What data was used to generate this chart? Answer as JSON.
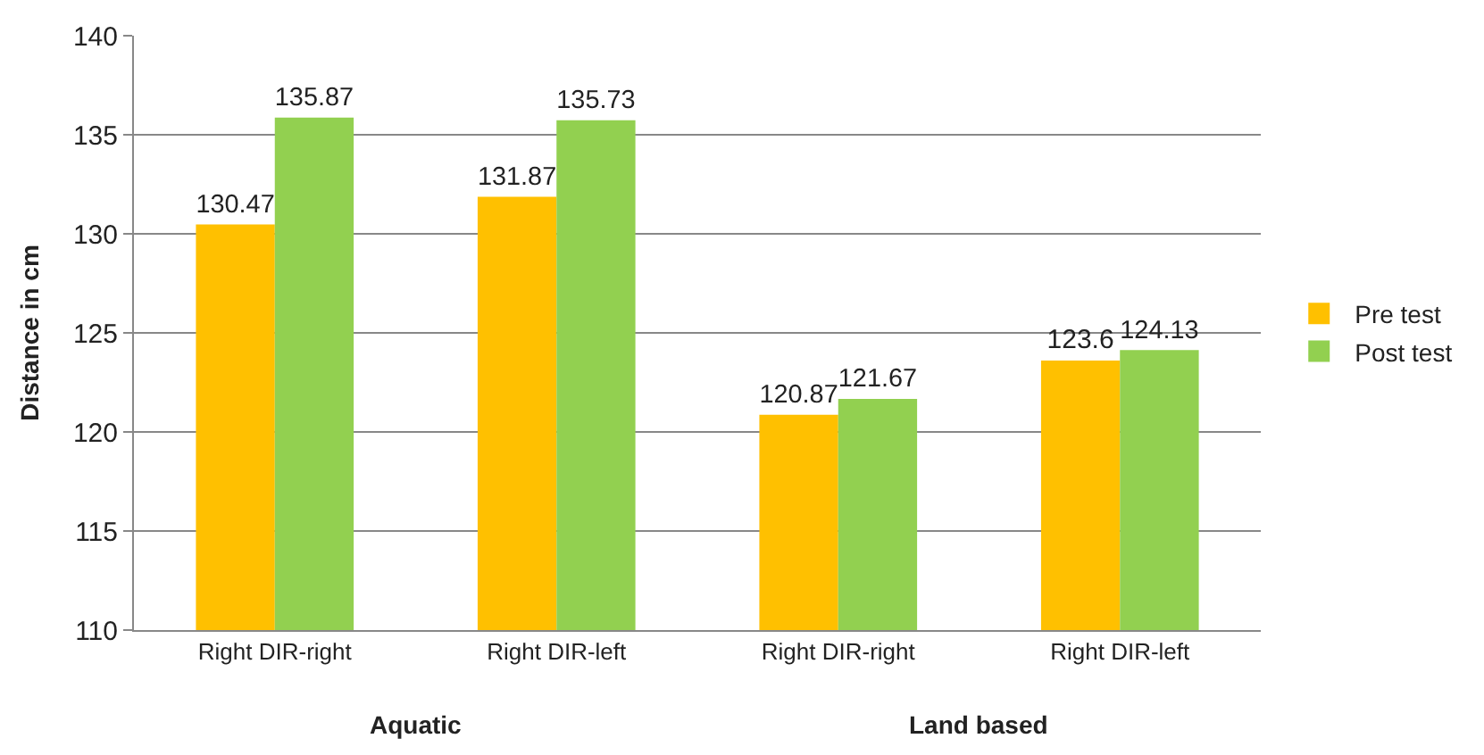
{
  "chart_data": {
    "type": "bar",
    "ylabel": "Distance in cm",
    "categories": [
      "Right DIR-right",
      "Right DIR-left",
      "Right DIR-right",
      "Right DIR-left"
    ],
    "series": [
      {
        "name": "Pre test",
        "color": "#ffc000",
        "values": [
          130.47,
          131.87,
          120.87,
          123.6
        ]
      },
      {
        "name": "Post test",
        "color": "#92d050",
        "values": [
          135.87,
          135.73,
          121.67,
          124.13
        ]
      }
    ],
    "ylim": [
      110,
      140
    ],
    "yticks": [
      110,
      115,
      120,
      125,
      130,
      135,
      140
    ],
    "grid": "y",
    "legend": "right",
    "data_labels": true,
    "annotations": [
      "Aquatic",
      "Land based"
    ]
  }
}
